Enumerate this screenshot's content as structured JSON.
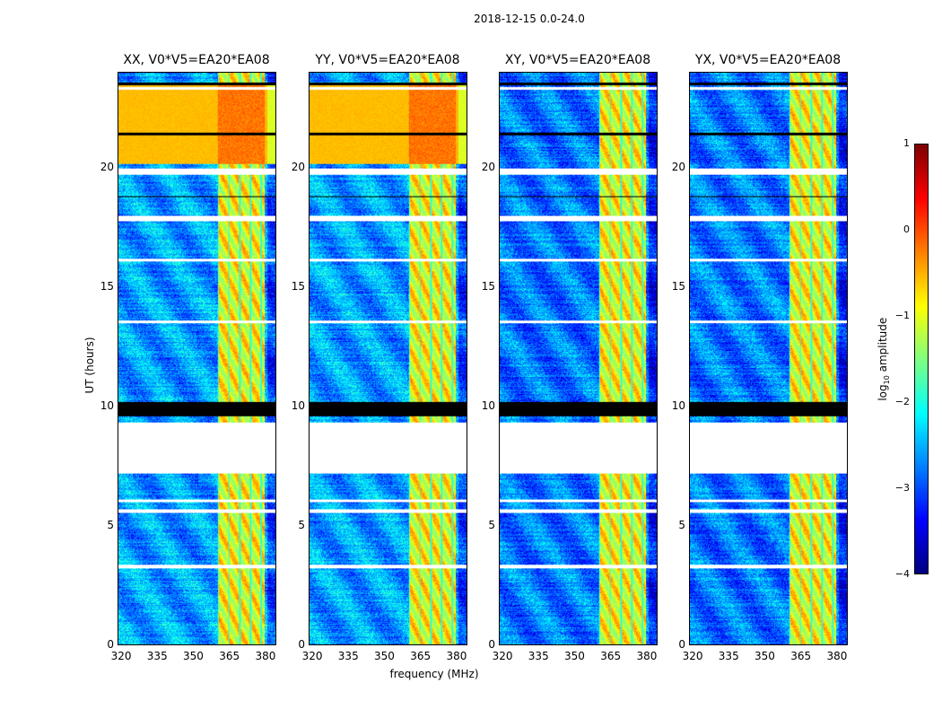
{
  "chart_data": {
    "type": "heatmap",
    "title": "2018-12-15 0.0-24.0",
    "xlabel": "frequency (MHz)",
    "ylabel": "UT (hours)",
    "xlim": [
      318.5,
      384.5
    ],
    "ylim": [
      0,
      24
    ],
    "xticks": [
      "320",
      "335",
      "350",
      "365",
      "380"
    ],
    "xtick_values": [
      320,
      335,
      350,
      365,
      380
    ],
    "yticks": [
      "0",
      "5",
      "10",
      "15",
      "20"
    ],
    "ytick_values": [
      0,
      5,
      10,
      15,
      20
    ],
    "panels": [
      {
        "title": "XX, V0*V5=EA20*EA08",
        "pol": "XX",
        "strong_interval": [
          20.2,
          23.5
        ]
      },
      {
        "title": "YY, V0*V5=EA20*EA08",
        "pol": "YY",
        "strong_interval": [
          20.2,
          23.5
        ]
      },
      {
        "title": "XY, V0*V5=EA20*EA08",
        "pol": "XY",
        "strong_interval": null
      },
      {
        "title": "YX, V0*V5=EA20*EA08",
        "pol": "YX",
        "strong_interval": null
      }
    ],
    "rfi_band_mhz": [
      360,
      380
    ],
    "flagged_white_hours": [
      [
        7.2,
        9.35
      ],
      [
        19.75,
        20.0
      ],
      [
        16.1,
        16.2
      ],
      [
        17.8,
        18.0
      ],
      [
        13.5,
        13.6
      ],
      [
        3.2,
        3.35
      ],
      [
        5.55,
        5.7
      ],
      [
        6.0,
        6.1
      ],
      [
        23.3,
        23.4
      ]
    ],
    "flagged_black_hours": [
      [
        9.6,
        10.2
      ],
      [
        23.5,
        23.6
      ],
      [
        18.8,
        18.85
      ],
      [
        21.4,
        21.5
      ]
    ],
    "colorbar": {
      "label": "log10 amplitude",
      "label_prefix": "log",
      "label_sub": "10",
      "label_suffix": " amplitude",
      "range": [
        -4,
        1
      ],
      "ticks": [
        "1",
        "0",
        "−1",
        "−2",
        "−3",
        "−4"
      ],
      "tick_values": [
        1,
        0,
        -1,
        -2,
        -3,
        -4
      ],
      "colormap": "jet"
    }
  }
}
